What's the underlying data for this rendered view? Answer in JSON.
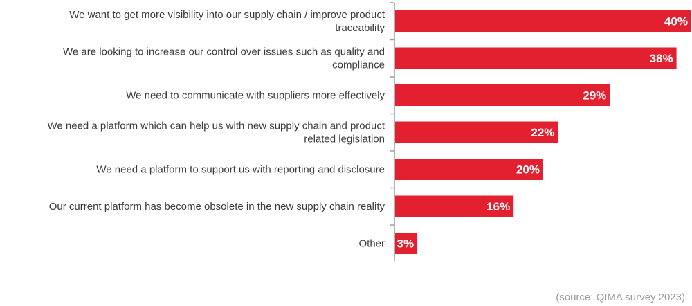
{
  "chart_data": {
    "type": "bar",
    "orientation": "horizontal",
    "categories": [
      [
        "We want to get more visibility into our supply chain / improve product",
        "traceability"
      ],
      [
        "We are looking to increase our control over issues such as quality and",
        "compliance"
      ],
      [
        "We need to communicate with suppliers more effectively"
      ],
      [
        "We need a platform which can help us with new supply chain and product",
        "related legislation"
      ],
      [
        "We need a platform to support us with reporting and disclosure"
      ],
      [
        "Our current platform has become obsolete in the new supply chain reality"
      ],
      [
        "Other"
      ]
    ],
    "values": [
      40,
      38,
      29,
      22,
      20,
      16,
      3
    ],
    "value_labels": [
      "40%",
      "38%",
      "29%",
      "22%",
      "20%",
      "16%",
      "3%"
    ],
    "unit": "%",
    "xlim": [
      0,
      40
    ],
    "grid": false,
    "bar_color": "#e3202f",
    "axis_color": "#9a9a9a"
  },
  "source_note": "(source: QIMA survey 2023)"
}
